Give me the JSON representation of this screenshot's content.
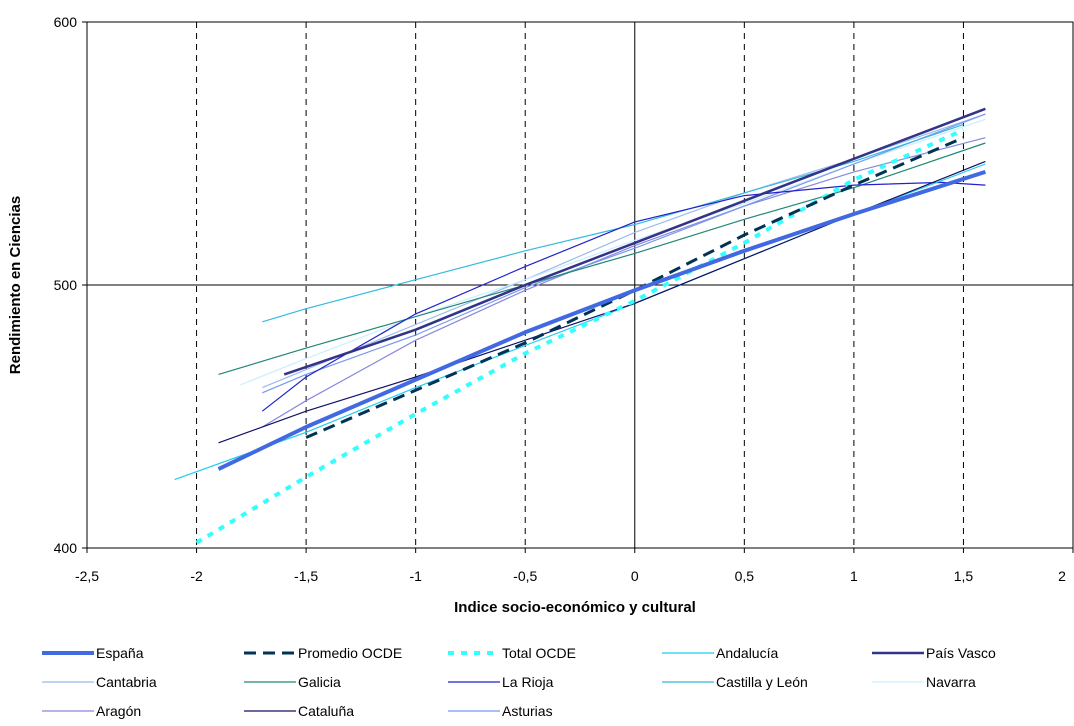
{
  "chart_data": {
    "type": "line",
    "title": "",
    "xlabel": "Indice socio-económico y cultural",
    "ylabel": "Rendimiento en Ciencias",
    "xlim": [
      -2.5,
      2
    ],
    "ylim": [
      400,
      600
    ],
    "x_ticks": [
      "-2,5",
      "-2",
      "-1,5",
      "-1",
      "-0,5",
      "0",
      "0,5",
      "1",
      "1,5",
      "2"
    ],
    "y_ticks": [
      "400",
      "500",
      "600"
    ],
    "vertical_dashed_gridlines_at": [
      -2,
      -1.5,
      -1,
      -0.5,
      0.5,
      1,
      1.5
    ],
    "legend_position": "bottom",
    "series": [
      {
        "name": "España",
        "color": "#4169E1",
        "style": "solid-thick",
        "x": [
          -1.9,
          -1.5,
          -1,
          -0.5,
          0,
          0.5,
          1,
          1.6
        ],
        "y": [
          430,
          446,
          464,
          482,
          498,
          513,
          527,
          543
        ]
      },
      {
        "name": "Promedio OCDE",
        "color": "#003355",
        "style": "dashed",
        "x": [
          -1.5,
          -1,
          -0.5,
          0,
          0.5,
          1,
          1.5
        ],
        "y": [
          442,
          460,
          478,
          498,
          519,
          538,
          556
        ]
      },
      {
        "name": "Total OCDE",
        "color": "#33FFFF",
        "style": "dotted-thick",
        "x": [
          -2,
          -1.5,
          -1,
          -0.5,
          0,
          0.5,
          1,
          1.5
        ],
        "y": [
          402,
          427,
          451,
          474,
          494,
          516,
          540,
          559
        ]
      },
      {
        "name": "Andalucía",
        "color": "#22CCEE",
        "style": "solid",
        "x": [
          -2.1,
          -1.5,
          -1,
          -0.5,
          0,
          0.5,
          1,
          1.6
        ],
        "y": [
          426,
          444,
          461,
          477,
          493,
          510,
          527,
          546
        ]
      },
      {
        "name": "País Vasco",
        "color": "#333388",
        "style": "solid-medium",
        "x": [
          -1.6,
          -1,
          -0.5,
          0,
          0.5,
          1,
          1.6
        ],
        "y": [
          466,
          483,
          500,
          516,
          532,
          548,
          567
        ]
      },
      {
        "name": "Cantabria",
        "color": "#99BBEE",
        "style": "solid",
        "x": [
          -1.7,
          -1,
          -0.5,
          0,
          0.5,
          1,
          1.6
        ],
        "y": [
          461,
          485,
          502,
          520,
          535,
          548,
          565
        ]
      },
      {
        "name": "Galicia",
        "color": "#228877",
        "style": "solid",
        "x": [
          -1.9,
          -1.5,
          -1,
          -0.5,
          0,
          0.5,
          1,
          1.6
        ],
        "y": [
          466,
          476,
          488,
          500,
          512,
          525,
          537,
          554
        ]
      },
      {
        "name": "La Rioja",
        "color": "#2222CC",
        "style": "solid",
        "x": [
          -1.7,
          -1.5,
          -1,
          -0.5,
          0,
          0.5,
          1,
          1.4,
          1.6
        ],
        "y": [
          452,
          465,
          489,
          507,
          524,
          534,
          538,
          539,
          538
        ]
      },
      {
        "name": "Castilla y León",
        "color": "#33BBDD",
        "style": "solid",
        "x": [
          -1.7,
          -1.5,
          -1,
          -0.5,
          0,
          0.5,
          1,
          1.5
        ],
        "y": [
          486,
          491,
          502,
          513,
          523,
          535,
          547,
          561
        ]
      },
      {
        "name": "Navarra",
        "color": "#CCEEFF",
        "style": "solid",
        "x": [
          -1.8,
          -1.5,
          -1,
          -0.5,
          0,
          0.5,
          1,
          1.6
        ],
        "y": [
          462,
          472,
          488,
          502,
          517,
          531,
          546,
          563
        ]
      },
      {
        "name": "Aragón",
        "color": "#8888DD",
        "style": "solid",
        "x": [
          -1.7,
          -1.5,
          -1,
          -0.5,
          0,
          0.5,
          1,
          1.6
        ],
        "y": [
          446,
          456,
          479,
          498,
          515,
          530,
          543,
          556
        ]
      },
      {
        "name": "Cataluña",
        "color": "#111166",
        "style": "solid",
        "x": [
          -1.9,
          -1.5,
          -1,
          -0.5,
          0,
          0.5,
          1,
          1.6
        ],
        "y": [
          440,
          452,
          465,
          479,
          493,
          510,
          527,
          547
        ]
      },
      {
        "name": "Asturias",
        "color": "#7799EE",
        "style": "solid",
        "x": [
          -1.7,
          -1.5,
          -1,
          -0.5,
          0,
          0.5,
          1,
          1.6
        ],
        "y": [
          459,
          466,
          481,
          499,
          514,
          530,
          546,
          565
        ]
      }
    ]
  }
}
